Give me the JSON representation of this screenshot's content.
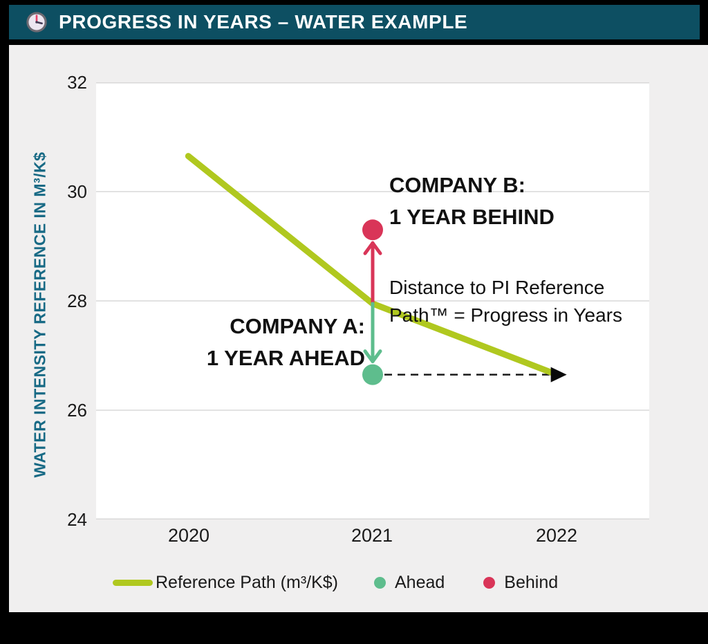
{
  "header": {
    "title": "PROGRESS IN YEARS – WATER EXAMPLE",
    "icon": "clock-icon"
  },
  "colors": {
    "header_bg": "#0d4f62",
    "header_text": "#ffffff",
    "panel_bg": "#f0efef",
    "plot_bg": "#ffffff",
    "grid": "#d8d8d8",
    "reference_line": "#b0c81f",
    "ahead": "#5ebd8d",
    "behind": "#d93558",
    "ylabel": "#186a85",
    "dashed_arrow": "#1a1a1a"
  },
  "axis": {
    "ylabel": "WATER INTENSITY REFERENCE IN M³/K$",
    "yticks": [
      "32",
      "30",
      "28",
      "26",
      "24"
    ],
    "xticks": [
      "2020",
      "2021",
      "2022"
    ]
  },
  "annotations": {
    "company_b": "COMPANY B:\n1 YEAR BEHIND",
    "company_a": "COMPANY A:\n1 YEAR AHEAD",
    "distance": "Distance to PI Reference\nPath™ = Progress in Years"
  },
  "legend": {
    "reference": "Reference Path (m³/K$)",
    "ahead": "Ahead",
    "behind": "Behind"
  },
  "chart_data": {
    "type": "line",
    "title": "PROGRESS IN YEARS – WATER EXAMPLE",
    "categories": [
      "2020",
      "2021",
      "2022"
    ],
    "series": [
      {
        "name": "Reference Path (m³/K$)",
        "kind": "line",
        "color": "#b0c81f",
        "values": [
          30.65,
          27.95,
          26.65
        ]
      },
      {
        "name": "Behind",
        "kind": "point",
        "color": "#d93558",
        "x": "2021",
        "y": 29.3,
        "label": "COMPANY B: 1 YEAR BEHIND"
      },
      {
        "name": "Ahead",
        "kind": "point",
        "color": "#5ebd8d",
        "x": "2021",
        "y": 26.65,
        "label": "COMPANY A: 1 YEAR AHEAD"
      }
    ],
    "ylabel": "WATER INTENSITY REFERENCE IN M³/K$",
    "xlabel": "",
    "ylim": [
      24,
      32
    ],
    "yticks": [
      32,
      30,
      28,
      26,
      24
    ],
    "grid": true,
    "legend_position": "bottom",
    "annotations": [
      {
        "text": "COMPANY B:\n1 YEAR BEHIND",
        "attached_to": "Behind point at (2021, 29.3)"
      },
      {
        "text": "COMPANY A:\n1 YEAR AHEAD",
        "attached_to": "Ahead point at (2021, 26.65)"
      },
      {
        "text": "Distance to PI Reference\nPath™ = Progress in Years",
        "attached_to": "vertical arrows at 2021 between points and reference path"
      },
      {
        "text": "",
        "attached_to": "black dashed horizontal arrow from Ahead point (2021, 26.65) to reference path end (2022, 26.65)"
      }
    ]
  }
}
